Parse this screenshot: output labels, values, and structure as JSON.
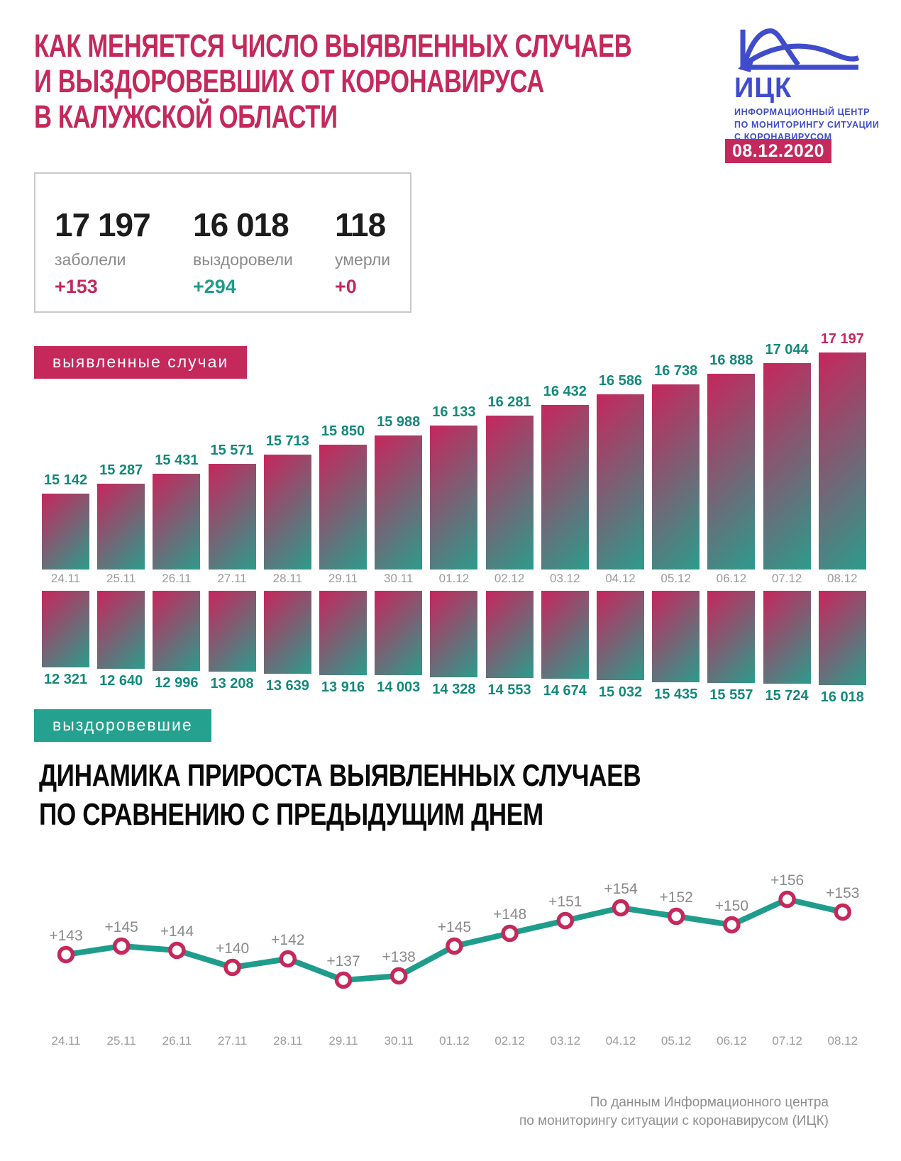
{
  "header": {
    "title_lines": [
      "КАК МЕНЯЕТСЯ ЧИСЛО ВЫЯВЛЕННЫХ СЛУЧАЕВ",
      "И ВЫЗДОРОВЕВШИХ ОТ КОРОНАВИРУСА",
      "В КАЛУЖСКОЙ ОБЛАСТИ"
    ],
    "logo": {
      "abbr": "ИЦК",
      "caption_lines": [
        "ИНФОРМАЦИОННЫЙ ЦЕНТР",
        "ПО МОНИТОРИНГУ СИТУАЦИИ",
        "С КОРОНАВИРУСОМ"
      ],
      "date": "08.12.2020"
    }
  },
  "summary": {
    "stats": [
      {
        "value": "17 197",
        "label": "заболели",
        "delta": "+153",
        "delta_color": "#c5295b"
      },
      {
        "value": "16 018",
        "label": "выздоровели",
        "delta": "+294",
        "delta_color": "#1f9c8b"
      },
      {
        "value": "118",
        "label": "умерли",
        "delta": "+0",
        "delta_color": "#c5295b"
      }
    ]
  },
  "badges": {
    "detected": "выявленные случаи",
    "recovered": "выздоровевшие"
  },
  "section2_title_lines": [
    "ДИНАМИКА ПРИРОСТА ВЫЯВЛЕННЫХ СЛУЧАЕВ",
    "ПО СРАВНЕНИЮ С ПРЕДЫДУЩИМ ДНЕМ"
  ],
  "footer_lines": [
    "По данным Информационного центра",
    "по мониторингу ситуации с коронавирусом (ИЦК)"
  ],
  "colors": {
    "crimson": "#c5295b",
    "teal_badge": "#25a18f",
    "teal_text": "#13897b",
    "teal_line": "#1f9d8c",
    "logo_blue": "#3f4ccb",
    "grad_start": "#c7265c",
    "grad_end": "#2b9c8c",
    "gray_label": "#9b9b9b",
    "gray_footer": "#8f8f8f",
    "number_black": "#1c1c1c",
    "box_border": "#c9c9c9"
  },
  "chart_data": [
    {
      "type": "bar",
      "title": "выявленные случаи",
      "categories": [
        "24.11",
        "25.11",
        "26.11",
        "27.11",
        "28.11",
        "29.11",
        "30.11",
        "01.12",
        "02.12",
        "03.12",
        "04.12",
        "05.12",
        "06.12",
        "07.12",
        "08.12"
      ],
      "values": [
        15142,
        15287,
        15431,
        15571,
        15713,
        15850,
        15988,
        16133,
        16281,
        16432,
        16586,
        16738,
        16888,
        17044,
        17197
      ],
      "labels": [
        "15 142",
        "15 287",
        "15 431",
        "15 571",
        "15 713",
        "15 850",
        "15 988",
        "16 133",
        "16 281",
        "16 432",
        "16 586",
        "16 738",
        "16 888",
        "17 044",
        "17 197"
      ],
      "highlight_last_label": true,
      "orientation": "up",
      "ylim": [
        15142,
        17197
      ]
    },
    {
      "type": "bar",
      "title": "выздоровевшие",
      "categories": [
        "24.11",
        "25.11",
        "26.11",
        "27.11",
        "28.11",
        "29.11",
        "30.11",
        "01.12",
        "02.12",
        "03.12",
        "04.12",
        "05.12",
        "06.12",
        "07.12",
        "08.12"
      ],
      "values": [
        12321,
        12640,
        12996,
        13208,
        13639,
        13916,
        14003,
        14328,
        14553,
        14674,
        15032,
        15435,
        15557,
        15724,
        16018
      ],
      "labels": [
        "12 321",
        "12 640",
        "12 996",
        "13 208",
        "13 639",
        "13 916",
        "14 003",
        "14 328",
        "14 553",
        "14 674",
        "15 032",
        "15 435",
        "15 557",
        "15 724",
        "16 018"
      ],
      "highlight_last_label": false,
      "orientation": "down",
      "ylim": [
        12321,
        16018
      ]
    },
    {
      "type": "line",
      "title": "ДИНАМИКА ПРИРОСТА ВЫЯВЛЕННЫХ СЛУЧАЕВ ПО СРАВНЕНИЮ С ПРЕДЫДУЩИМ ДНЕМ",
      "categories": [
        "24.11",
        "25.11",
        "26.11",
        "27.11",
        "28.11",
        "29.11",
        "30.11",
        "01.12",
        "02.12",
        "03.12",
        "04.12",
        "05.12",
        "06.12",
        "07.12",
        "08.12"
      ],
      "values": [
        143,
        145,
        144,
        140,
        142,
        137,
        138,
        145,
        148,
        151,
        154,
        152,
        150,
        156,
        153
      ],
      "labels": [
        "+143",
        "+145",
        "+144",
        "+140",
        "+142",
        "+137",
        "+138",
        "+145",
        "+148",
        "+151",
        "+154",
        "+152",
        "+150",
        "+156",
        "+153"
      ],
      "legend": "none",
      "grid": false,
      "ylim": [
        130,
        160
      ]
    }
  ]
}
